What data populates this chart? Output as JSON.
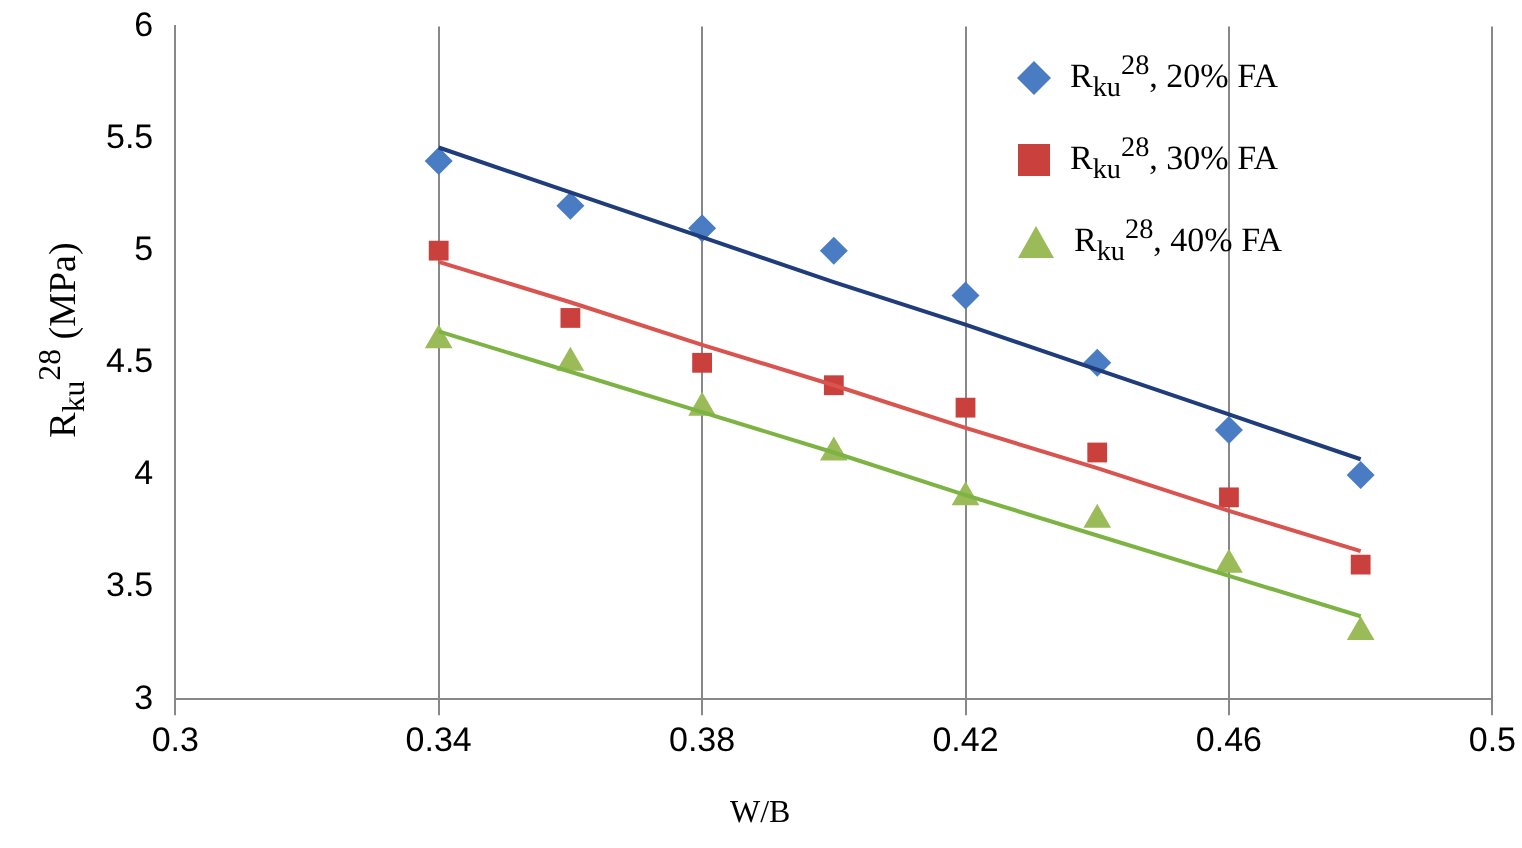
{
  "chart_data": {
    "type": "scatter",
    "xlabel": "W/B",
    "ylabel": "R$_{ku}$$^{28}$ (MPa)",
    "xlim": [
      0.3,
      0.5
    ],
    "xticks": [
      0.3,
      0.34,
      0.38,
      0.42,
      0.46,
      0.5
    ],
    "ylim": [
      3,
      6
    ],
    "yticks": [
      3,
      3.5,
      4,
      4.5,
      5,
      5.5,
      6
    ],
    "grid": "x",
    "legend": "top right",
    "x": [
      0.34,
      0.36,
      0.38,
      0.4,
      0.42,
      0.44,
      0.46,
      0.48
    ],
    "series": [
      {
        "name": "R$_{ku}$$^{28}$, 20% FA",
        "color": "#4a7cc4",
        "marker": "diamond",
        "values": [
          5.4,
          5.2,
          5.1,
          5.0,
          4.8,
          4.5,
          4.2,
          4.0
        ]
      },
      {
        "name": "R$_{ku}$$^{28}$, 30% FA",
        "color": "#c9403d",
        "marker": "square",
        "values": [
          5.0,
          4.7,
          4.5,
          4.4,
          4.3,
          4.1,
          3.9,
          3.6
        ]
      },
      {
        "name": "R$_{ku}$$^{28}$, 40% FA",
        "color": "#9bbb59",
        "marker": "triangle",
        "values": [
          4.6,
          4.5,
          4.3,
          4.1,
          3.9,
          3.8,
          3.6,
          3.3
        ]
      },
      {
        "type": "line",
        "color": "#1f3d7a",
        "marker": "none",
        "values": [
          5.46,
          5.26,
          5.06,
          4.86,
          4.67,
          4.47,
          4.27,
          4.07
        ]
      },
      {
        "type": "line",
        "color": "#d9534f",
        "marker": "none",
        "values": [
          4.95,
          4.77,
          4.58,
          4.4,
          4.21,
          4.03,
          3.84,
          3.66
        ]
      },
      {
        "type": "line",
        "color": "#7cb342",
        "marker": "none",
        "values": [
          4.64,
          4.46,
          4.28,
          4.1,
          3.91,
          3.73,
          3.55,
          3.37
        ]
      }
    ]
  }
}
